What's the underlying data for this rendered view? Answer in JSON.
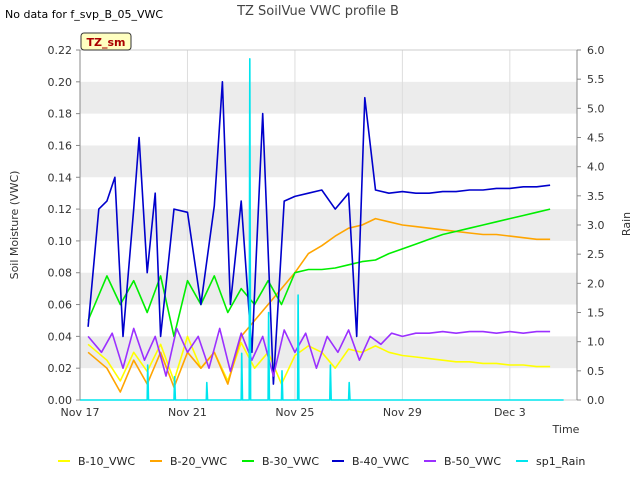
{
  "chart_data": {
    "type": "line",
    "title": "TZ SoilVue VWC profile B",
    "note": "No data for f_svp_B_05_VWC",
    "badge": "TZ_sm",
    "xlabel": "Time",
    "ylabel": "Soil Moisture (VWC)",
    "y2label": "Rain",
    "xlim": [
      0,
      18.5
    ],
    "x_ticks": [
      {
        "x": 0,
        "label": "Nov 17"
      },
      {
        "x": 4,
        "label": "Nov 21"
      },
      {
        "x": 8,
        "label": "Nov 25"
      },
      {
        "x": 12,
        "label": "Nov 29"
      },
      {
        "x": 16,
        "label": "Dec 3"
      }
    ],
    "ylim": [
      0,
      0.22
    ],
    "y_ticks": [
      "0.00",
      "0.02",
      "0.04",
      "0.06",
      "0.08",
      "0.10",
      "0.12",
      "0.14",
      "0.16",
      "0.18",
      "0.20",
      "0.22"
    ],
    "y2lim": [
      0,
      6.0
    ],
    "y2_ticks": [
      "0.0",
      "0.5",
      "1.0",
      "1.5",
      "2.0",
      "2.5",
      "3.0",
      "3.5",
      "4.0",
      "4.5",
      "5.0",
      "5.5",
      "6.0"
    ],
    "grid": true,
    "legend_position": "bottom",
    "series": [
      {
        "name": "B-10_VWC",
        "color": "#ffff00",
        "axis": "left",
        "x": [
          0.3,
          1,
          1.5,
          2,
          2.5,
          3,
          3.5,
          4,
          4.5,
          5,
          5.5,
          6,
          6.5,
          7,
          7.5,
          8,
          8.5,
          9,
          9.5,
          10,
          10.5,
          11,
          11.5,
          12,
          12.5,
          13,
          13.5,
          14,
          14.5,
          15,
          15.5,
          16,
          16.5,
          17,
          17.5
        ],
        "y": [
          0.035,
          0.025,
          0.012,
          0.03,
          0.018,
          0.035,
          0.012,
          0.04,
          0.02,
          0.03,
          0.012,
          0.036,
          0.02,
          0.03,
          0.01,
          0.028,
          0.034,
          0.03,
          0.02,
          0.032,
          0.03,
          0.034,
          0.03,
          0.028,
          0.027,
          0.026,
          0.025,
          0.024,
          0.024,
          0.023,
          0.023,
          0.022,
          0.022,
          0.021,
          0.021
        ]
      },
      {
        "name": "B-20_VWC",
        "color": "#ffa500",
        "axis": "left",
        "x": [
          0.3,
          1,
          1.5,
          2,
          2.5,
          3,
          3.5,
          4,
          4.5,
          5,
          5.5,
          6,
          6.5,
          7,
          7.5,
          8,
          8.5,
          9,
          9.5,
          10,
          10.5,
          11,
          11.5,
          12,
          12.5,
          13,
          13.5,
          14,
          14.5,
          15,
          15.5,
          16,
          16.5,
          17,
          17.5
        ],
        "y": [
          0.03,
          0.02,
          0.005,
          0.025,
          0.01,
          0.03,
          0.008,
          0.03,
          0.02,
          0.03,
          0.01,
          0.04,
          0.05,
          0.06,
          0.07,
          0.08,
          0.092,
          0.097,
          0.103,
          0.108,
          0.11,
          0.114,
          0.112,
          0.11,
          0.109,
          0.108,
          0.107,
          0.106,
          0.105,
          0.104,
          0.104,
          0.103,
          0.102,
          0.101,
          0.101
        ]
      },
      {
        "name": "B-30_VWC",
        "color": "#00ee00",
        "axis": "left",
        "x": [
          0.3,
          1,
          1.5,
          2,
          2.5,
          3,
          3.5,
          4,
          4.5,
          5,
          5.5,
          6,
          6.5,
          7,
          7.5,
          8,
          8.5,
          9,
          9.5,
          10,
          10.5,
          11,
          11.5,
          12,
          12.5,
          13,
          13.5,
          14,
          14.5,
          15,
          15.5,
          16,
          16.5,
          17,
          17.5
        ],
        "y": [
          0.05,
          0.078,
          0.06,
          0.075,
          0.055,
          0.078,
          0.04,
          0.075,
          0.06,
          0.078,
          0.055,
          0.07,
          0.06,
          0.075,
          0.06,
          0.08,
          0.082,
          0.082,
          0.083,
          0.085,
          0.087,
          0.088,
          0.092,
          0.095,
          0.098,
          0.101,
          0.104,
          0.106,
          0.108,
          0.11,
          0.112,
          0.114,
          0.116,
          0.118,
          0.12
        ]
      },
      {
        "name": "B-40_VWC",
        "color": "#0000cc",
        "axis": "left",
        "x": [
          0.3,
          0.7,
          1,
          1.3,
          1.6,
          2,
          2.2,
          2.5,
          2.8,
          3,
          3.5,
          4,
          4.5,
          5,
          5.3,
          5.6,
          6,
          6.4,
          6.8,
          7.2,
          7.6,
          8,
          8.5,
          9,
          9.5,
          10,
          10.3,
          10.6,
          11,
          11.5,
          12,
          12.5,
          13,
          13.5,
          14,
          14.5,
          15,
          15.5,
          16,
          16.5,
          17,
          17.5
        ],
        "y": [
          0.046,
          0.12,
          0.125,
          0.14,
          0.04,
          0.12,
          0.165,
          0.08,
          0.13,
          0.04,
          0.12,
          0.118,
          0.06,
          0.122,
          0.2,
          0.06,
          0.125,
          0.03,
          0.18,
          0.01,
          0.125,
          0.128,
          0.13,
          0.132,
          0.12,
          0.13,
          0.04,
          0.19,
          0.132,
          0.13,
          0.131,
          0.13,
          0.13,
          0.131,
          0.131,
          0.132,
          0.132,
          0.133,
          0.133,
          0.134,
          0.134,
          0.135
        ]
      },
      {
        "name": "B-50_VWC",
        "color": "#9b30ff",
        "axis": "left",
        "x": [
          0.3,
          0.8,
          1.2,
          1.6,
          2,
          2.4,
          2.8,
          3.2,
          3.6,
          4,
          4.4,
          4.8,
          5.2,
          5.6,
          6,
          6.4,
          6.8,
          7.2,
          7.6,
          8,
          8.4,
          8.8,
          9.2,
          9.6,
          10,
          10.4,
          10.8,
          11.2,
          11.6,
          12,
          12.5,
          13,
          13.5,
          14,
          14.5,
          15,
          15.5,
          16,
          16.5,
          17,
          17.5
        ],
        "y": [
          0.04,
          0.03,
          0.042,
          0.02,
          0.045,
          0.025,
          0.04,
          0.015,
          0.045,
          0.03,
          0.04,
          0.02,
          0.045,
          0.018,
          0.042,
          0.025,
          0.04,
          0.015,
          0.044,
          0.03,
          0.042,
          0.02,
          0.04,
          0.03,
          0.044,
          0.025,
          0.04,
          0.035,
          0.042,
          0.04,
          0.042,
          0.042,
          0.043,
          0.042,
          0.043,
          0.043,
          0.042,
          0.043,
          0.042,
          0.043,
          0.043
        ]
      },
      {
        "name": "sp1_Rain",
        "color": "#00e5ee",
        "axis": "right",
        "x": [
          0,
          2.5,
          2.52,
          2.55,
          3.5,
          3.52,
          3.55,
          4.7,
          4.72,
          4.75,
          6.0,
          6.02,
          6.05,
          6.3,
          6.32,
          6.35,
          7.0,
          7.02,
          7.05,
          7.5,
          7.52,
          7.55,
          8.1,
          8.12,
          8.15,
          9.3,
          9.32,
          9.35,
          10.0,
          10.02,
          10.05,
          18
        ],
        "y": [
          0,
          0,
          0.6,
          0,
          0,
          0.4,
          0,
          0,
          0.3,
          0,
          0,
          0.8,
          0,
          0,
          5.85,
          0,
          0,
          1.5,
          0,
          0,
          0.5,
          0,
          0,
          1.8,
          0,
          0,
          0.6,
          0,
          0,
          0.3,
          0,
          0
        ]
      }
    ]
  }
}
